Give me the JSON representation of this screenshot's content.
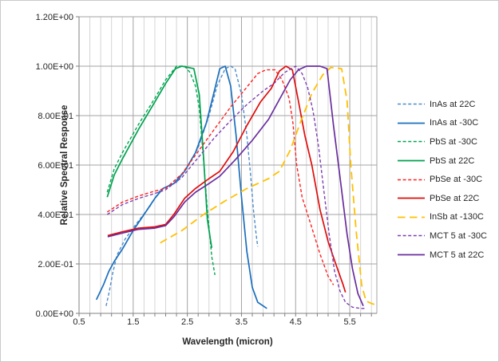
{
  "styles": {
    "background": "#ffffff",
    "outer_border": "#c9c9c9",
    "grid_minor": "#d4d4d4",
    "grid_major": "#a3a3a3",
    "axis_line": "#808080",
    "text": "#262626"
  },
  "chart_data": {
    "type": "line",
    "title": "",
    "xlabel": "Wavelength (micron)",
    "ylabel": "Relative Spectral Response",
    "legend_position": "right",
    "grid": {
      "horizontal_major": true,
      "vertical_minor": true,
      "vertical_major": true
    },
    "x_axis": {
      "min": 0.5,
      "max": 6.0,
      "minor_step": 0.2,
      "major_step": 1.0,
      "major_tick_values": [
        0.5,
        1.5,
        2.5,
        3.5,
        4.5,
        5.5
      ],
      "major_tick_labels": [
        "0.5",
        "1.5",
        "2.5",
        "3.5",
        "4.5",
        "5.5"
      ]
    },
    "y_axis": {
      "min": 0.0,
      "max": 1.2,
      "tick_values": [
        0.0,
        0.2,
        0.4,
        0.6,
        0.8,
        1.0,
        1.2
      ],
      "tick_labels": [
        "0.00E+00",
        "2.00E-01",
        "4.00E-01",
        "6.00E-01",
        "8.00E-01",
        "1.00E+00",
        "1.20E+00"
      ]
    },
    "series": [
      {
        "label": "InAs at 22C",
        "color": "#4e8ccb",
        "line_style": "dashed",
        "points": [
          [
            1.0,
            0.03
          ],
          [
            1.06,
            0.09
          ],
          [
            1.12,
            0.16
          ],
          [
            1.2,
            0.235
          ],
          [
            1.35,
            0.3
          ],
          [
            1.55,
            0.36
          ],
          [
            1.8,
            0.43
          ],
          [
            2.0,
            0.5
          ],
          [
            2.15,
            0.515
          ],
          [
            2.3,
            0.53
          ],
          [
            2.5,
            0.59
          ],
          [
            2.7,
            0.67
          ],
          [
            2.9,
            0.8
          ],
          [
            3.05,
            0.92
          ],
          [
            3.2,
            0.99
          ],
          [
            3.3,
            1.0
          ],
          [
            3.38,
            0.99
          ],
          [
            3.5,
            0.885
          ],
          [
            3.6,
            0.72
          ],
          [
            3.67,
            0.555
          ],
          [
            3.72,
            0.42
          ],
          [
            3.77,
            0.32
          ],
          [
            3.8,
            0.27
          ]
        ]
      },
      {
        "label": "InAs at -30C",
        "color": "#1a6fbd",
        "line_style": "solid",
        "points": [
          [
            0.82,
            0.055
          ],
          [
            0.95,
            0.115
          ],
          [
            1.05,
            0.17
          ],
          [
            1.15,
            0.21
          ],
          [
            1.3,
            0.26
          ],
          [
            1.5,
            0.335
          ],
          [
            1.7,
            0.4
          ],
          [
            1.9,
            0.465
          ],
          [
            2.05,
            0.505
          ],
          [
            2.25,
            0.525
          ],
          [
            2.45,
            0.575
          ],
          [
            2.65,
            0.65
          ],
          [
            2.85,
            0.77
          ],
          [
            3.0,
            0.9
          ],
          [
            3.1,
            0.99
          ],
          [
            3.2,
            1.0
          ],
          [
            3.3,
            0.92
          ],
          [
            3.4,
            0.72
          ],
          [
            3.5,
            0.47
          ],
          [
            3.6,
            0.25
          ],
          [
            3.7,
            0.105
          ],
          [
            3.8,
            0.045
          ],
          [
            3.97,
            0.02
          ]
        ]
      },
      {
        "label": "PbS at -30C",
        "color": "#00a651",
        "line_style": "dashed",
        "points": [
          [
            1.02,
            0.49
          ],
          [
            1.15,
            0.585
          ],
          [
            1.3,
            0.65
          ],
          [
            1.6,
            0.765
          ],
          [
            1.9,
            0.87
          ],
          [
            2.1,
            0.945
          ],
          [
            2.3,
            1.0
          ],
          [
            2.45,
            1.0
          ],
          [
            2.55,
            0.975
          ],
          [
            2.65,
            0.92
          ],
          [
            2.72,
            0.83
          ],
          [
            2.8,
            0.62
          ],
          [
            2.87,
            0.42
          ],
          [
            2.95,
            0.23
          ],
          [
            3.01,
            0.155
          ]
        ]
      },
      {
        "label": "PbS at 22C",
        "color": "#00a24f",
        "line_style": "solid",
        "points": [
          [
            1.02,
            0.47
          ],
          [
            1.15,
            0.56
          ],
          [
            1.3,
            0.625
          ],
          [
            1.6,
            0.745
          ],
          [
            1.9,
            0.855
          ],
          [
            2.1,
            0.93
          ],
          [
            2.28,
            0.99
          ],
          [
            2.4,
            1.0
          ],
          [
            2.62,
            0.99
          ],
          [
            2.72,
            0.885
          ],
          [
            2.8,
            0.63
          ],
          [
            2.87,
            0.38
          ],
          [
            2.95,
            0.265
          ]
        ]
      },
      {
        "label": "PbSe at -30C",
        "color": "#ff1f1f",
        "line_style": "dashed",
        "points": [
          [
            1.02,
            0.41
          ],
          [
            1.3,
            0.45
          ],
          [
            1.6,
            0.475
          ],
          [
            1.9,
            0.495
          ],
          [
            2.1,
            0.505
          ],
          [
            2.4,
            0.565
          ],
          [
            2.7,
            0.655
          ],
          [
            3.0,
            0.745
          ],
          [
            3.3,
            0.835
          ],
          [
            3.6,
            0.915
          ],
          [
            3.8,
            0.97
          ],
          [
            3.95,
            0.985
          ],
          [
            4.12,
            0.985
          ],
          [
            4.25,
            0.945
          ],
          [
            4.38,
            0.87
          ],
          [
            4.45,
            0.77
          ],
          [
            4.52,
            0.6
          ],
          [
            4.62,
            0.47
          ],
          [
            4.78,
            0.36
          ],
          [
            4.95,
            0.24
          ],
          [
            5.1,
            0.15
          ],
          [
            5.2,
            0.115
          ]
        ]
      },
      {
        "label": "PbSe at 22C",
        "color": "#e00b0b",
        "line_style": "solid",
        "points": [
          [
            1.03,
            0.315
          ],
          [
            1.3,
            0.33
          ],
          [
            1.6,
            0.345
          ],
          [
            1.9,
            0.35
          ],
          [
            2.1,
            0.36
          ],
          [
            2.25,
            0.4
          ],
          [
            2.45,
            0.465
          ],
          [
            2.65,
            0.505
          ],
          [
            2.9,
            0.545
          ],
          [
            3.1,
            0.575
          ],
          [
            3.35,
            0.655
          ],
          [
            3.6,
            0.76
          ],
          [
            3.85,
            0.855
          ],
          [
            4.05,
            0.91
          ],
          [
            4.2,
            0.98
          ],
          [
            4.32,
            1.0
          ],
          [
            4.44,
            0.985
          ],
          [
            4.55,
            0.86
          ],
          [
            4.67,
            0.72
          ],
          [
            4.8,
            0.6
          ],
          [
            4.95,
            0.42
          ],
          [
            5.1,
            0.29
          ],
          [
            5.25,
            0.195
          ],
          [
            5.37,
            0.12
          ],
          [
            5.42,
            0.085
          ]
        ]
      },
      {
        "label": "InSb at -130C",
        "color": "#ffc000",
        "line_style": "long-dashed",
        "points": [
          [
            2.0,
            0.285
          ],
          [
            2.4,
            0.335
          ],
          [
            2.8,
            0.4
          ],
          [
            3.2,
            0.455
          ],
          [
            3.6,
            0.505
          ],
          [
            4.0,
            0.545
          ],
          [
            4.2,
            0.575
          ],
          [
            4.4,
            0.66
          ],
          [
            4.6,
            0.78
          ],
          [
            4.8,
            0.89
          ],
          [
            5.0,
            0.965
          ],
          [
            5.15,
            0.995
          ],
          [
            5.35,
            0.99
          ],
          [
            5.45,
            0.86
          ],
          [
            5.52,
            0.6
          ],
          [
            5.62,
            0.33
          ],
          [
            5.72,
            0.115
          ],
          [
            5.8,
            0.05
          ],
          [
            5.9,
            0.04
          ],
          [
            5.97,
            0.035
          ]
        ]
      },
      {
        "label": "MCT 5 at -30C",
        "color": "#7e3fb0",
        "line_style": "dashed",
        "points": [
          [
            1.02,
            0.4
          ],
          [
            1.3,
            0.44
          ],
          [
            1.6,
            0.465
          ],
          [
            1.9,
            0.485
          ],
          [
            2.1,
            0.5
          ],
          [
            2.4,
            0.55
          ],
          [
            2.7,
            0.63
          ],
          [
            3.0,
            0.71
          ],
          [
            3.3,
            0.78
          ],
          [
            3.6,
            0.845
          ],
          [
            3.9,
            0.9
          ],
          [
            4.1,
            0.93
          ],
          [
            4.3,
            0.975
          ],
          [
            4.5,
            1.0
          ],
          [
            4.62,
            0.97
          ],
          [
            4.72,
            0.915
          ],
          [
            4.82,
            0.82
          ],
          [
            4.92,
            0.68
          ],
          [
            5.02,
            0.5
          ],
          [
            5.12,
            0.32
          ],
          [
            5.22,
            0.17
          ],
          [
            5.32,
            0.09
          ],
          [
            5.42,
            0.045
          ],
          [
            5.55,
            0.025
          ],
          [
            5.7,
            0.02
          ],
          [
            5.8,
            0.02
          ]
        ]
      },
      {
        "label": "MCT 5 at 22C",
        "color": "#6a2d9e",
        "line_style": "solid",
        "points": [
          [
            1.03,
            0.31
          ],
          [
            1.3,
            0.325
          ],
          [
            1.6,
            0.34
          ],
          [
            1.9,
            0.345
          ],
          [
            2.1,
            0.355
          ],
          [
            2.25,
            0.39
          ],
          [
            2.45,
            0.45
          ],
          [
            2.65,
            0.49
          ],
          [
            2.9,
            0.525
          ],
          [
            3.1,
            0.555
          ],
          [
            3.4,
            0.625
          ],
          [
            3.7,
            0.7
          ],
          [
            4.0,
            0.785
          ],
          [
            4.2,
            0.865
          ],
          [
            4.4,
            0.945
          ],
          [
            4.55,
            0.985
          ],
          [
            4.7,
            1.0
          ],
          [
            4.95,
            1.0
          ],
          [
            5.08,
            0.99
          ],
          [
            5.2,
            0.76
          ],
          [
            5.32,
            0.55
          ],
          [
            5.45,
            0.32
          ],
          [
            5.55,
            0.18
          ],
          [
            5.65,
            0.08
          ],
          [
            5.75,
            0.03
          ]
        ]
      }
    ]
  }
}
